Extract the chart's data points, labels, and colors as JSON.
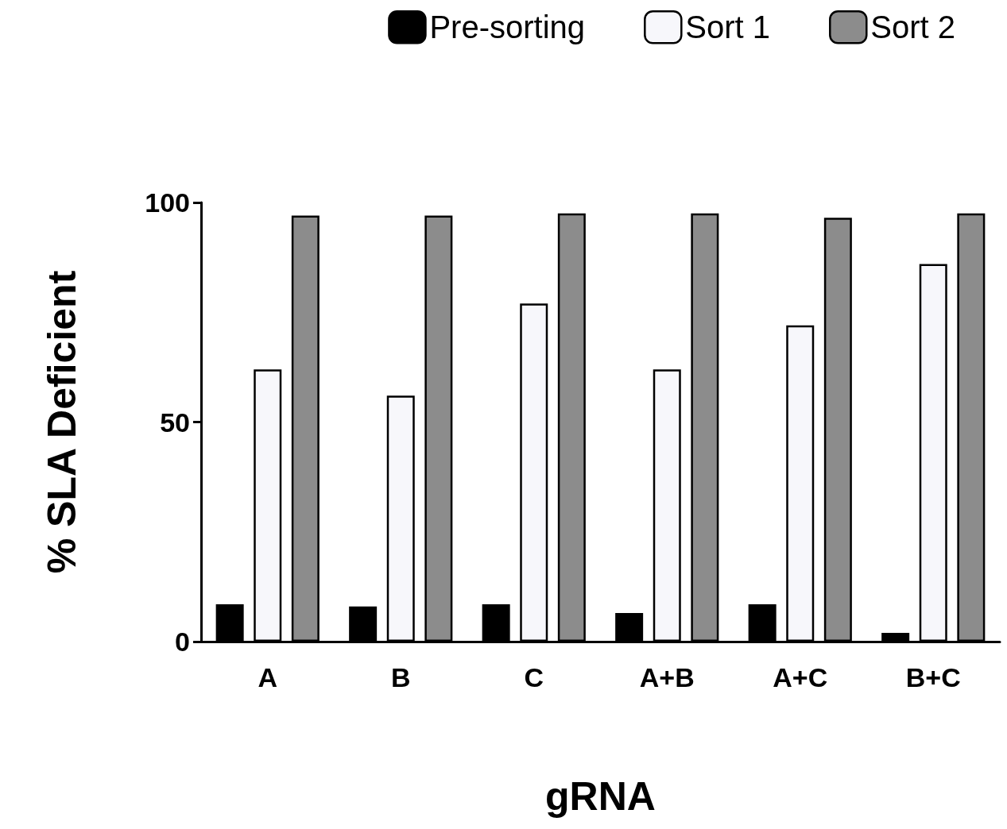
{
  "chart_data": {
    "type": "bar",
    "xlabel": "gRNA",
    "ylabel": "% SLA Deficient",
    "categories": [
      "A",
      "B",
      "C",
      "A+B",
      "A+C",
      "B+C"
    ],
    "series": [
      {
        "name": "Pre-sorting",
        "color": "#000000",
        "values": [
          8.5,
          8,
          8.5,
          6.5,
          8.5,
          2
        ]
      },
      {
        "name": "Sort 1",
        "color": "#f7f7fb",
        "values": [
          62,
          56,
          77,
          62,
          72,
          86
        ]
      },
      {
        "name": "Sort 2",
        "color": "#8c8c8c",
        "values": [
          97,
          97,
          97.5,
          97.5,
          96.5,
          97.5
        ]
      }
    ],
    "ylim": [
      0,
      100
    ],
    "yticks": [
      0,
      50,
      100
    ],
    "grid": false,
    "legend": "top right"
  }
}
